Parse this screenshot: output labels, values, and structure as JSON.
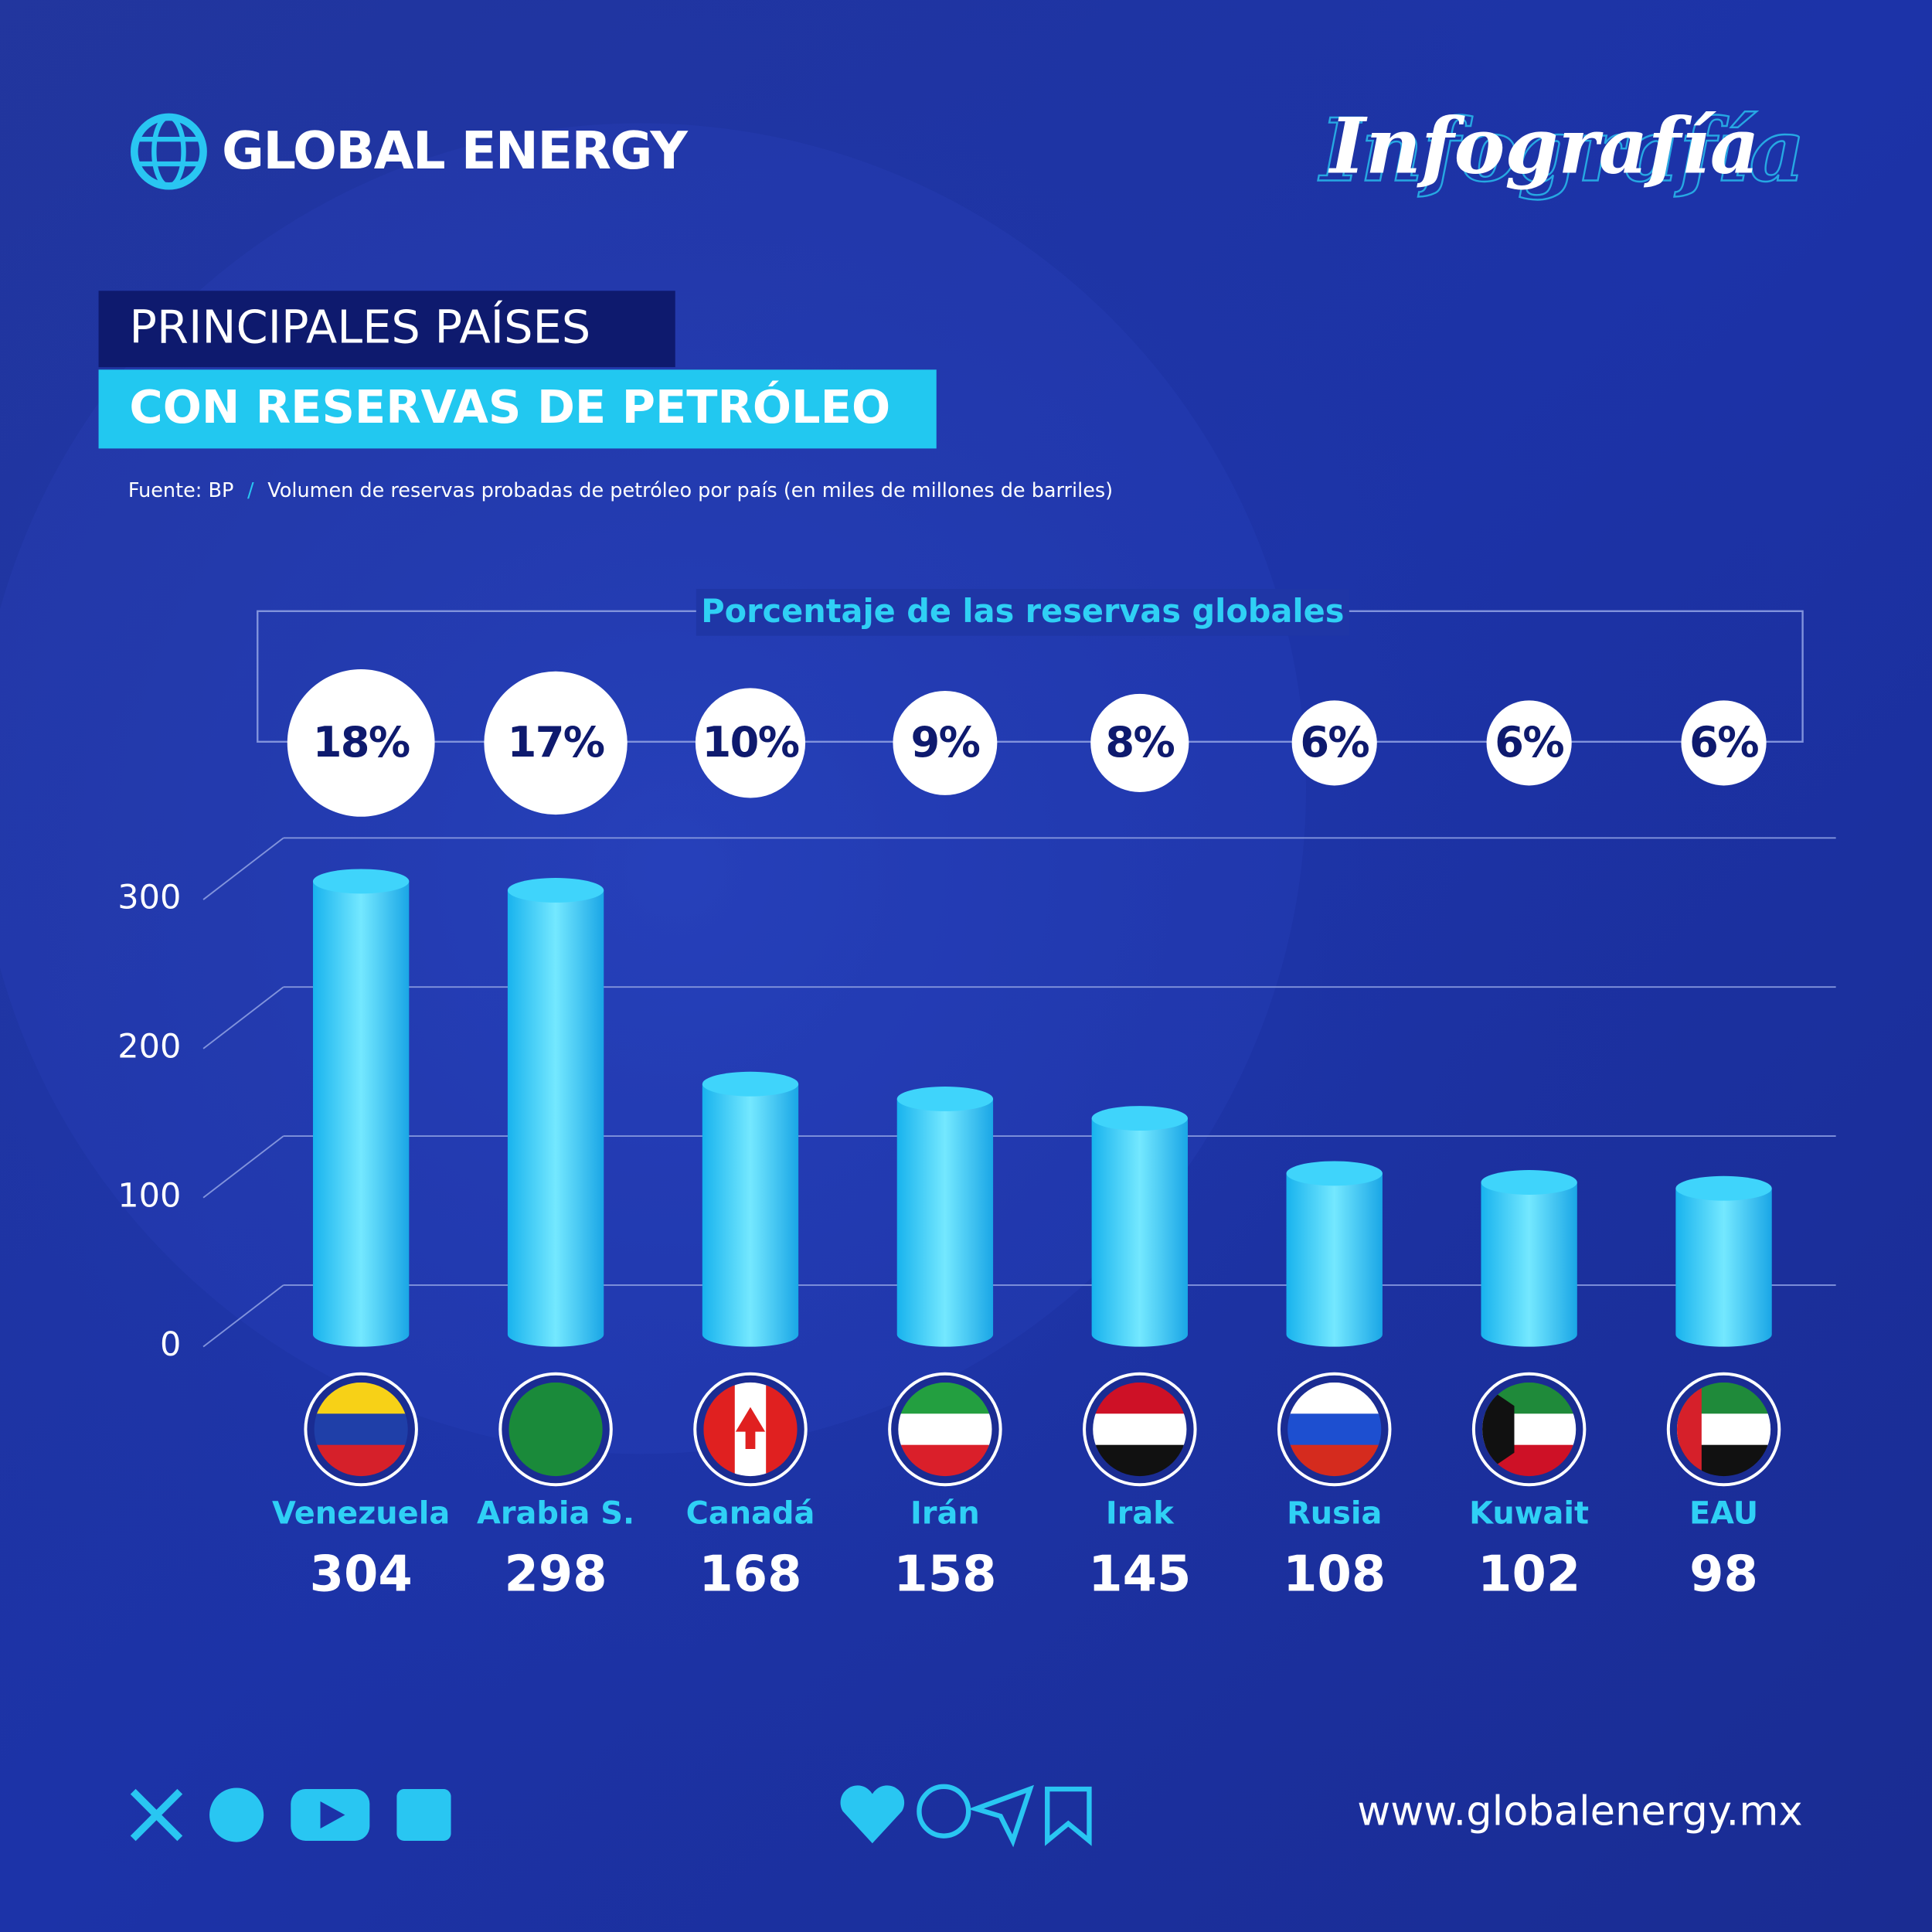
{
  "brand": "GLOBAL ENERGY",
  "tag": "Infografía",
  "chart_data": {
    "type": "bar",
    "title": [
      "PRINCIPALES PAÍSES",
      "CON RESERVAS DE PETRÓLEO"
    ],
    "source": "Fuente: BP",
    "source_separator": "/",
    "subtitle": "Volumen de reservas probadas de petróleo por país (en miles de millones de barriles)",
    "categories": [
      "Venezuela",
      "Arabia S.",
      "Canadá",
      "Irán",
      "Irak",
      "Rusia",
      "Kuwait",
      "EAU"
    ],
    "values": [
      304,
      298,
      168,
      158,
      145,
      108,
      102,
      98
    ],
    "color": "#29c6f2",
    "ylim": [
      0,
      310
    ],
    "yticks": [
      0,
      100,
      200,
      300
    ],
    "grid": true,
    "shares": {
      "name": "Porcentaje de las reservas globales",
      "values": [
        18,
        17,
        10,
        9,
        8,
        6,
        6,
        6
      ],
      "value_labels": [
        "18%",
        "17%",
        "10%",
        "9%",
        "8%",
        "6%",
        "6%",
        "6%"
      ],
      "color": "#ffffff"
    }
  },
  "footer": {
    "url": "www.globalenergy.mx"
  }
}
